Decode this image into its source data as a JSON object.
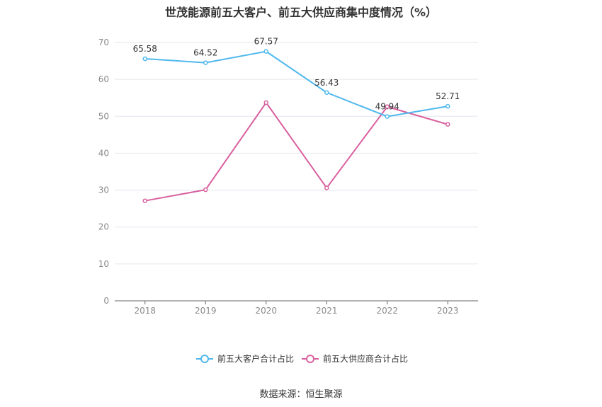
{
  "chart_data": {
    "type": "line",
    "title": "世茂能源前五大客户、前五大供应商集中度情况（%）",
    "categories": [
      "2018",
      "2019",
      "2020",
      "2021",
      "2022",
      "2023"
    ],
    "ylim": [
      0,
      70
    ],
    "yticks": [
      "0",
      "10",
      "20",
      "30",
      "40",
      "50",
      "60",
      "70"
    ],
    "grid": true,
    "legend_position": "bottom",
    "series": [
      {
        "name": "前五大客户合计占比",
        "color": "#4fb8ee",
        "values": [
          65.58,
          64.52,
          67.57,
          56.43,
          49.94,
          52.71
        ],
        "labels": [
          "65.58",
          "64.52",
          "67.57",
          "56.43",
          "49.94",
          "52.71"
        ]
      },
      {
        "name": "前五大供应商合计占比",
        "color": "#d9609f",
        "values": [
          27.1,
          30.1,
          53.7,
          30.6,
          52.6,
          47.8
        ],
        "labels": []
      }
    ]
  },
  "source": "数据来源：恒生聚源"
}
